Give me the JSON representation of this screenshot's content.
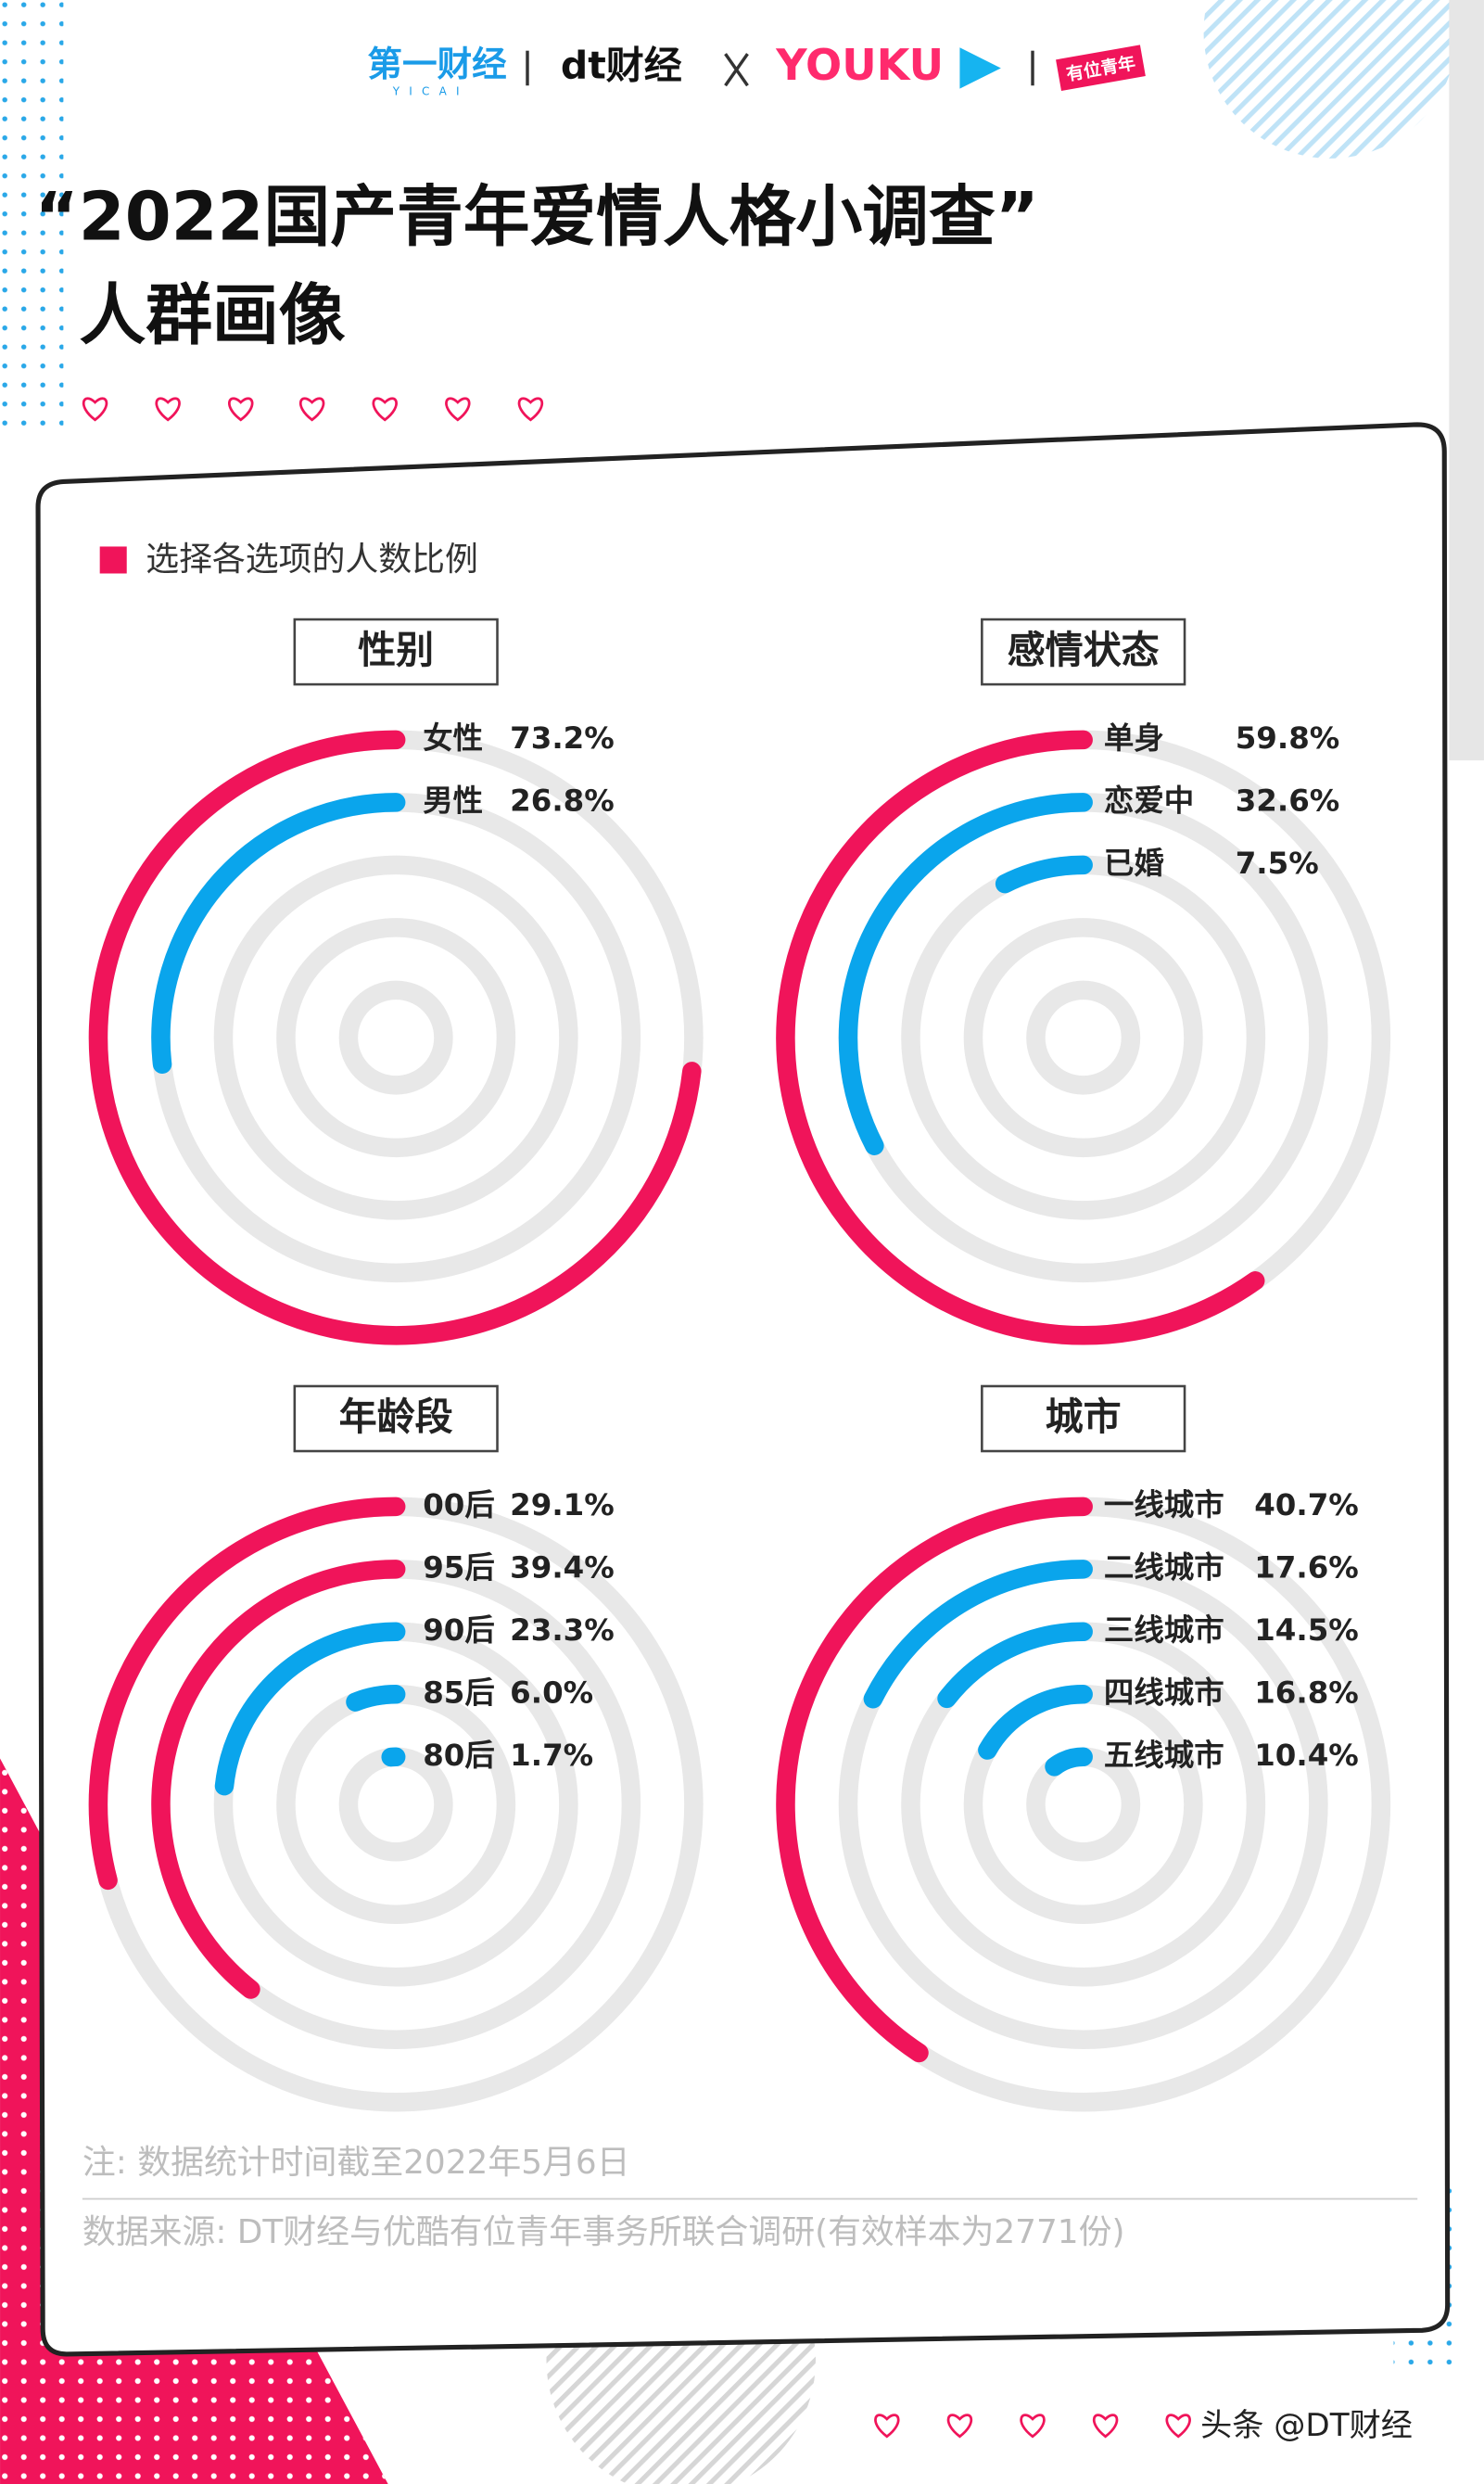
{
  "header": {
    "logos": [
      "第一财经",
      "YICAI",
      "dt财经",
      "YOUKU",
      "有位青年"
    ]
  },
  "title": [
    "“2022国产青年爱情人格小调查”",
    "人群画像"
  ],
  "legend": "选择各选项的人数比例",
  "chart_data": [
    {
      "type": "radial",
      "title": "性别",
      "categories": [
        "女性",
        "男性"
      ],
      "values": [
        73.2,
        26.8
      ],
      "value_labels": [
        "73.2%",
        "26.8%"
      ],
      "colors": [
        "#f0145a",
        "#0aa5ec"
      ],
      "ylim": [
        0,
        100
      ]
    },
    {
      "type": "radial",
      "title": "感情状态",
      "categories": [
        "单身",
        "恋爱中",
        "已婚"
      ],
      "values": [
        59.8,
        32.6,
        7.5
      ],
      "value_labels": [
        "59.8%",
        "32.6%",
        "7.5%"
      ],
      "colors": [
        "#f0145a",
        "#0aa5ec",
        "#0aa5ec"
      ],
      "ylim": [
        0,
        100
      ]
    },
    {
      "type": "radial",
      "title": "年龄段",
      "categories": [
        "00后",
        "95后",
        "90后",
        "85后",
        "80后"
      ],
      "values": [
        29.1,
        39.4,
        23.3,
        6.0,
        1.7
      ],
      "value_labels": [
        "29.1%",
        "39.4%",
        "23.3%",
        "6.0%",
        "1.7%"
      ],
      "colors": [
        "#f0145a",
        "#f0145a",
        "#0aa5ec",
        "#0aa5ec",
        "#0aa5ec"
      ],
      "ylim": [
        0,
        100
      ]
    },
    {
      "type": "radial",
      "title": "城市",
      "categories": [
        "一线城市",
        "二线城市",
        "三线城市",
        "四线城市",
        "五线城市"
      ],
      "values": [
        40.7,
        17.6,
        14.5,
        16.8,
        10.4
      ],
      "value_labels": [
        "40.7%",
        "17.6%",
        "14.5%",
        "16.8%",
        "10.4%"
      ],
      "colors": [
        "#f0145a",
        "#0aa5ec",
        "#0aa5ec",
        "#0aa5ec",
        "#0aa5ec"
      ],
      "ylim": [
        0,
        100
      ]
    }
  ],
  "notes": [
    "注: 数据统计时间截至2022年5月6日",
    "数据来源: DT财经与优酷有位青年事务所联合调研(有效样本为2771份)"
  ],
  "watermark": "头条 @DT财经"
}
